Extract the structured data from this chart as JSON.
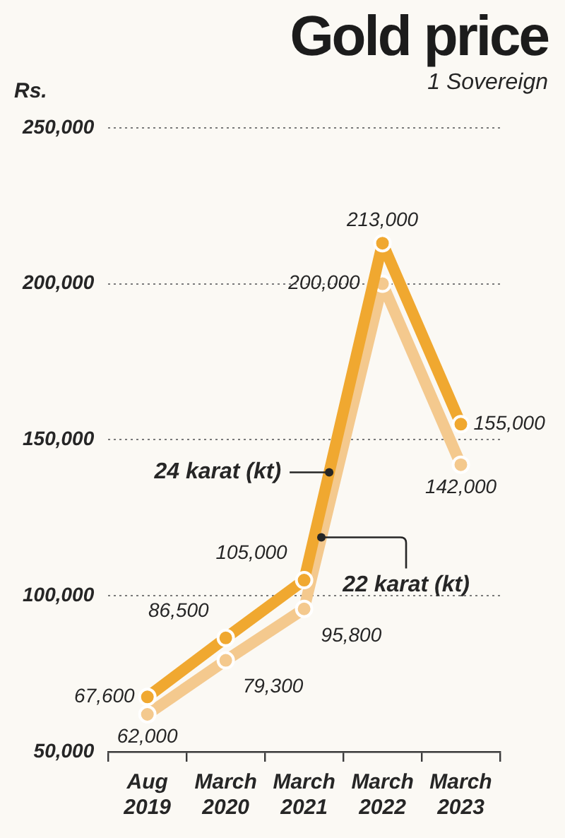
{
  "chart_data": {
    "type": "line",
    "title": "Gold price",
    "subtitle": "1 Sovereign",
    "ylabel": "Rs.",
    "categories": [
      "Aug 2019",
      "March 2020",
      "March 2021",
      "March 2022",
      "March 2023"
    ],
    "series": [
      {
        "name": "24 karat (kt)",
        "color": "#f0a830",
        "values": [
          67600,
          86500,
          105000,
          213000,
          155000
        ],
        "value_labels": [
          "67,600",
          "86,500",
          "105,000",
          "213,000",
          "155,000"
        ]
      },
      {
        "name": "22 karat (kt)",
        "color": "#f4c98e",
        "values": [
          62000,
          79300,
          95800,
          200000,
          142000
        ],
        "value_labels": [
          "62,000",
          "79,300",
          "95,800",
          "200,000",
          "142,000"
        ]
      }
    ],
    "ylim": [
      50000,
      250000
    ],
    "yticks": [
      {
        "value": 50000,
        "label": "50,000"
      },
      {
        "value": 100000,
        "label": "100,000"
      },
      {
        "value": 150000,
        "label": "150,000"
      },
      {
        "value": 200000,
        "label": "200,000"
      },
      {
        "value": 250000,
        "label": "250,000"
      }
    ],
    "grid": "y",
    "marker": "circle",
    "line_style": "solid"
  }
}
